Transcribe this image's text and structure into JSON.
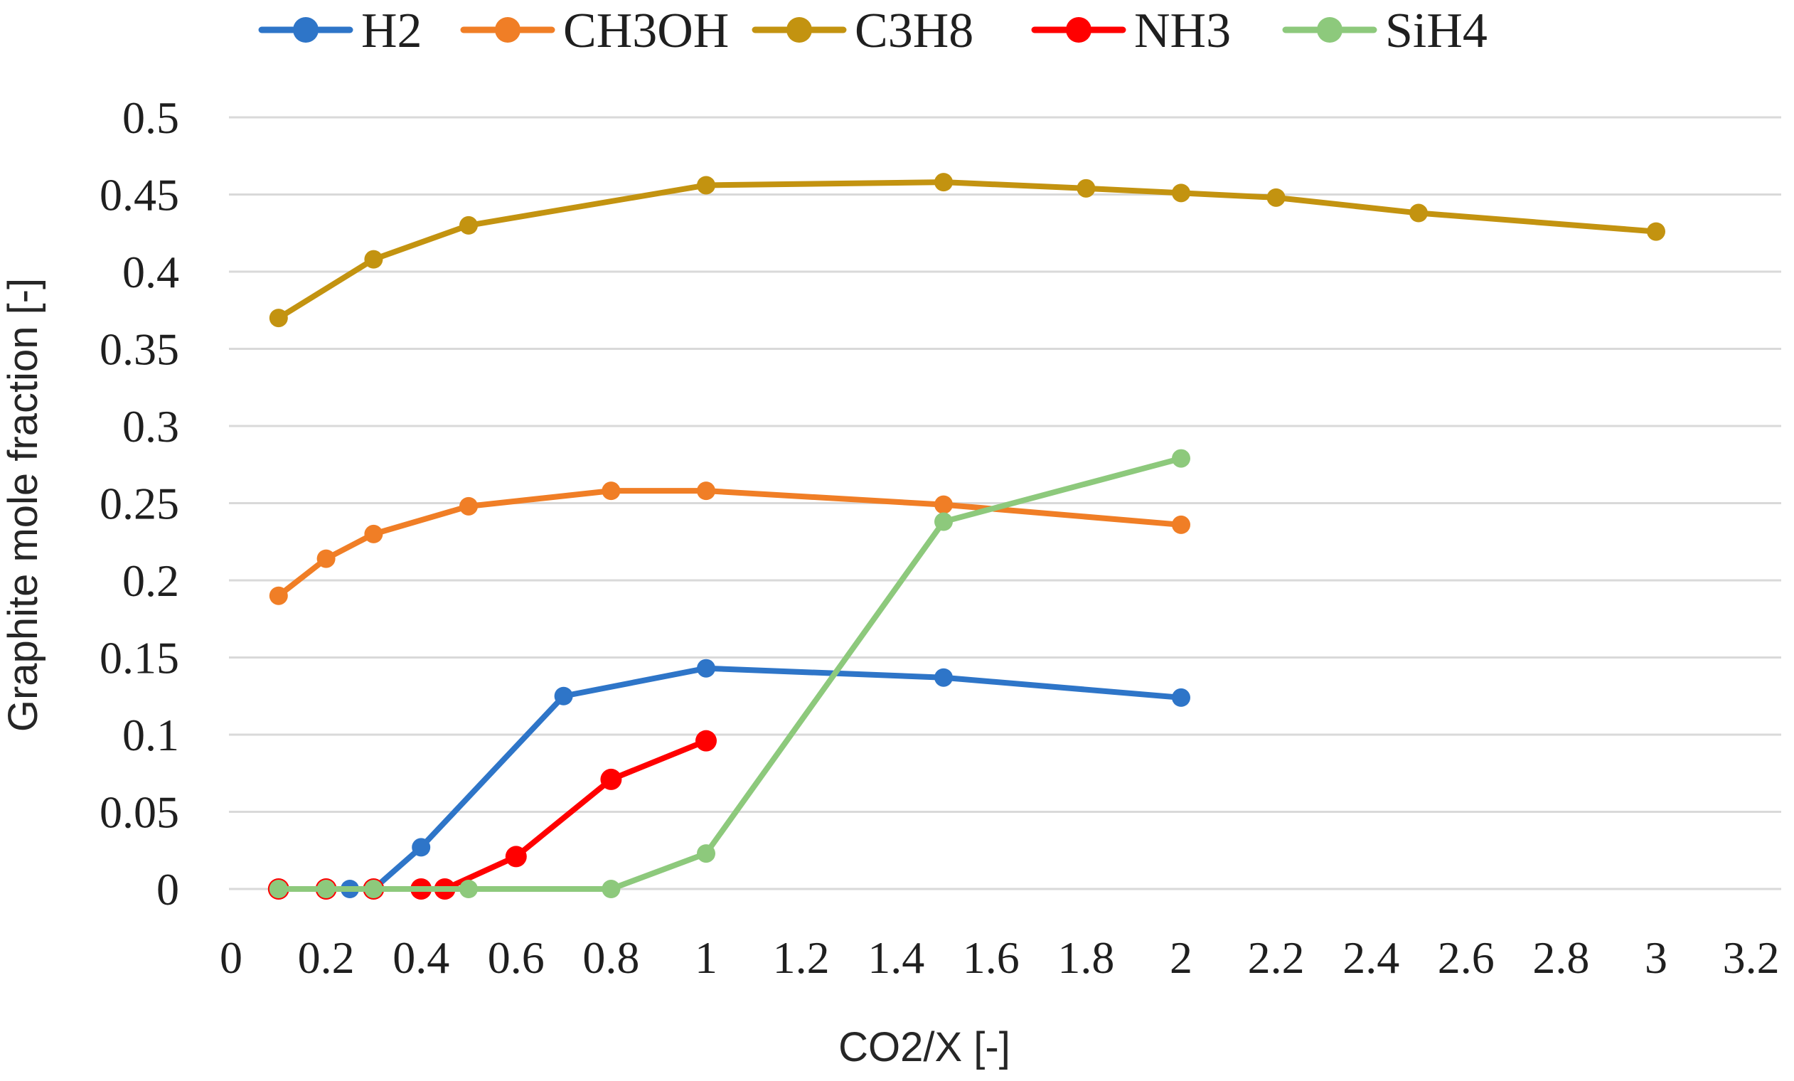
{
  "chart_data": {
    "type": "line",
    "title": "",
    "xlabel": "CO2/X [-]",
    "ylabel": "Graphite mole fraction [-]",
    "xlim": [
      0,
      3.2
    ],
    "ylim": [
      0,
      0.5
    ],
    "grid": "horizontal-only",
    "grid_color": "#d9d9d9",
    "text_color": "#1f1f1f",
    "legend_position": "top",
    "x_ticks": [
      {
        "value": 0,
        "label": "0"
      },
      {
        "value": 0.2,
        "label": "0.2"
      },
      {
        "value": 0.4,
        "label": "0.4"
      },
      {
        "value": 0.6,
        "label": "0.6"
      },
      {
        "value": 0.8,
        "label": "0.8"
      },
      {
        "value": 1,
        "label": "1"
      },
      {
        "value": 1.2,
        "label": "1.2"
      },
      {
        "value": 1.4,
        "label": "1.4"
      },
      {
        "value": 1.6,
        "label": "1.6"
      },
      {
        "value": 1.8,
        "label": "1.8"
      },
      {
        "value": 2,
        "label": "2"
      },
      {
        "value": 2.2,
        "label": "2.2"
      },
      {
        "value": 2.4,
        "label": "2.4"
      },
      {
        "value": 2.6,
        "label": "2.6"
      },
      {
        "value": 2.8,
        "label": "2.8"
      },
      {
        "value": 3,
        "label": "3"
      },
      {
        "value": 3.2,
        "label": "3.2"
      }
    ],
    "y_ticks": [
      {
        "value": 0,
        "label": "0"
      },
      {
        "value": 0.05,
        "label": "0.05"
      },
      {
        "value": 0.1,
        "label": "0.1"
      },
      {
        "value": 0.15,
        "label": "0.15"
      },
      {
        "value": 0.2,
        "label": "0.2"
      },
      {
        "value": 0.25,
        "label": "0.25"
      },
      {
        "value": 0.3,
        "label": "0.3"
      },
      {
        "value": 0.35,
        "label": "0.35"
      },
      {
        "value": 0.4,
        "label": "0.4"
      },
      {
        "value": 0.45,
        "label": "0.45"
      },
      {
        "value": 0.5,
        "label": "0.5"
      }
    ],
    "series": [
      {
        "name": "H2",
        "color": "#2e75c8",
        "marker_radius": 13,
        "points": [
          [
            0.25,
            0
          ],
          [
            0.3,
            0
          ],
          [
            0.4,
            0.027
          ],
          [
            0.7,
            0.125
          ],
          [
            1,
            0.143
          ],
          [
            1.5,
            0.137
          ],
          [
            2,
            0.124
          ]
        ]
      },
      {
        "name": "CH3OH",
        "color": "#f07e26",
        "marker_radius": 13,
        "points": [
          [
            0.1,
            0.19
          ],
          [
            0.2,
            0.214
          ],
          [
            0.3,
            0.23
          ],
          [
            0.5,
            0.248
          ],
          [
            0.8,
            0.258
          ],
          [
            1,
            0.258
          ],
          [
            1.5,
            0.249
          ],
          [
            2,
            0.236
          ]
        ]
      },
      {
        "name": "C3H8",
        "color": "#c39310",
        "marker_radius": 13,
        "points": [
          [
            0.1,
            0.37
          ],
          [
            0.3,
            0.408
          ],
          [
            0.5,
            0.43
          ],
          [
            1,
            0.456
          ],
          [
            1.5,
            0.458
          ],
          [
            1.8,
            0.454
          ],
          [
            2,
            0.451
          ],
          [
            2.2,
            0.448
          ],
          [
            2.5,
            0.438
          ],
          [
            3,
            0.426
          ]
        ]
      },
      {
        "name": "NH3",
        "color": "#ff0000",
        "marker_radius": 15,
        "points": [
          [
            0.1,
            0
          ],
          [
            0.2,
            0
          ],
          [
            0.3,
            0
          ],
          [
            0.4,
            0
          ],
          [
            0.45,
            0
          ],
          [
            0.6,
            0.021
          ],
          [
            0.8,
            0.071
          ],
          [
            1,
            0.096
          ]
        ]
      },
      {
        "name": "SiH4",
        "color": "#8dc97c",
        "marker_radius": 13,
        "points": [
          [
            0.1,
            0
          ],
          [
            0.2,
            0
          ],
          [
            0.3,
            0
          ],
          [
            0.5,
            0
          ],
          [
            0.8,
            0
          ],
          [
            1,
            0.023
          ],
          [
            1.5,
            0.238
          ],
          [
            2,
            0.279
          ]
        ]
      }
    ]
  }
}
